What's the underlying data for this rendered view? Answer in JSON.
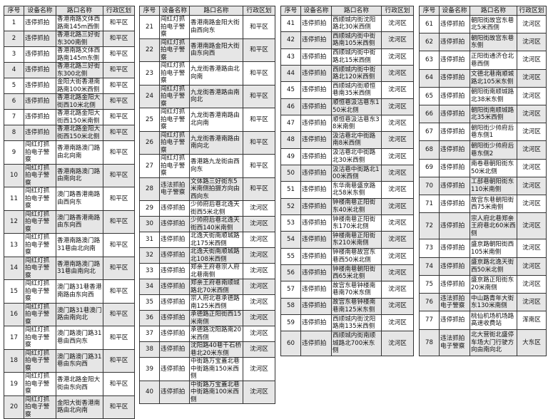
{
  "headers": [
    "序号",
    "设备名称",
    "路口名称",
    "行政区划"
  ],
  "rows": [
    [
      "1",
      "违停抓拍",
      "香港南路文体西路南145m西侧",
      "和平区"
    ],
    [
      "2",
      "违停抓拍",
      "香港北路三好街东300南侧",
      "和平区"
    ],
    [
      "3",
      "违停抓拍",
      "香港南路文体西路南145m东侧",
      "和平区"
    ],
    [
      "4",
      "违停抓拍",
      "香港北路三好街东300北侧",
      "和平区"
    ],
    [
      "5",
      "违停抓拍",
      "金阳大街香港南路南100米西侧",
      "和平区"
    ],
    [
      "6",
      "违停抓拍",
      "香港北路金阳大街西10米北侧",
      "和平区"
    ],
    [
      "7",
      "违停抓拍",
      "香港北路金阳大街西150米南侧",
      "和平区"
    ],
    [
      "8",
      "违停抓拍",
      "香港北路金阳大街西150米北侧",
      "和平区"
    ],
    [
      "9",
      "闯红灯抓拍电子警察",
      "香港南路澳门路由北向南",
      "和平区"
    ],
    [
      "10",
      "闯红灯抓拍电子警察",
      "香港南路澳门路由南向北",
      "和平区"
    ],
    [
      "11",
      "闯红灯抓拍电子警察",
      "澳门路香港南路由西向东",
      "和平区"
    ],
    [
      "12",
      "闯红灯抓拍电子警察",
      "澳门路香港南路由东向西",
      "和平区"
    ],
    [
      "13",
      "闯红灯抓拍电子警察",
      "香港南路澳门路31巷由北向南",
      "和平区"
    ],
    [
      "14",
      "闯红灯抓拍电子警察",
      "香港南路澳门路31巷由南向北",
      "和平区"
    ],
    [
      "15",
      "闯红灯抓拍电子警察",
      "澳门路31巷香港南路由东向西",
      "和平区"
    ],
    [
      "16",
      "闯红灯抓拍电子警察",
      "澳门路31巷澳门路由南向北",
      "和平区"
    ],
    [
      "17",
      "闯红灯抓拍电子警察",
      "澳门路澳门路31巷由西向东",
      "和平区"
    ],
    [
      "18",
      "闯红灯抓拍电子警察",
      "澳门路澳门路31巷由东向西",
      "和平区"
    ],
    [
      "19",
      "闯红灯抓拍电子警察",
      "香港北路金阳大街由东向西",
      "和平区"
    ],
    [
      "20",
      "闯红灯抓拍电子警察",
      "金阳大街香港南路由北向南",
      "和平区"
    ],
    [
      "21",
      "闯红灯抓拍电子警察",
      "香港南路金阳大街由西向东",
      "和平区"
    ],
    [
      "22",
      "闯红灯抓拍电子警察",
      "香港南路金阳大街由东向西",
      "和平区"
    ],
    [
      "23",
      "闯红灯抓拍电子警察",
      "九龙街香港路由北向南",
      "和平区"
    ],
    [
      "24",
      "闯红灯抓拍电子警察",
      "九龙街香港路由南向北",
      "和平区"
    ],
    [
      "25",
      "闯红灯抓拍电子警察",
      "九龙街香港南路由北向南",
      "和平区"
    ],
    [
      "26",
      "闯红灯抓拍电子警察",
      "九龙街香港南路由南向北",
      "和平区"
    ],
    [
      "27",
      "闯红灯抓拍电子警察",
      "香港路九龙街由西向东",
      "和平区"
    ],
    [
      "28",
      "违法抓拍电子警察",
      "文体路三好街东5米南侧拍摄方向由西向东",
      "和平区"
    ],
    [
      "29",
      "违停抓拍",
      "少帅府后巷北逸天街西5米北侧",
      "沈河区"
    ],
    [
      "30",
      "违停抓拍",
      "少帅府后巷北逸天街西140米南侧",
      "沈河区"
    ],
    [
      "31",
      "违停抓拍",
      "北逸天街南顺城路北175米西侧",
      "沈河区"
    ],
    [
      "32",
      "违停抓拍",
      "北逸天街南顺城路北108米西侧",
      "沈河区"
    ],
    [
      "33",
      "违停抓拍",
      "郑亲王府巷宗人府北巷南侧",
      "沈河区"
    ],
    [
      "34",
      "违停抓拍",
      "郑亲王府巷南顺城路北70米西侧",
      "沈河区"
    ],
    [
      "35",
      "违停抓拍",
      "宗人府北巷承德路南125米西侧",
      "沈河区"
    ],
    [
      "36",
      "违停抓拍",
      "承德路正阳街西15米南侧",
      "沈河区"
    ],
    [
      "37",
      "违停抓拍",
      "承德路沈阳路南20米西侧",
      "沈河区"
    ],
    [
      "38",
      "违停抓拍",
      "沈阳路40巷千石桥巷北20米东侧",
      "沈河区"
    ],
    [
      "39",
      "违停抓拍",
      "中街路万宝蓋北巷中街路南150米西侧",
      "沈河区"
    ],
    [
      "40",
      "违停抓拍",
      "中街路万宝蓋北巷中街路南100米西侧",
      "沈河区"
    ],
    [
      "41",
      "违停抓拍",
      "西顺城内街沈阳路北30米西侧",
      "沈河区"
    ],
    [
      "42",
      "违停抓拍",
      "西顺城内街中街路南105米西侧",
      "沈河区"
    ],
    [
      "43",
      "违停抓拍",
      "西顺城内街中街路北15米西侧",
      "沈河区"
    ],
    [
      "44",
      "违停抓拍",
      "西顺城内街中街路北120米西侧",
      "沈河区"
    ],
    [
      "45",
      "违停抓拍",
      "西顺城内街顺恒巷南35米西侧",
      "沈河区"
    ],
    [
      "46",
      "违停抓拍",
      "顺恒巷汲沽巷东150米北侧",
      "沈河区"
    ],
    [
      "47",
      "违停抓拍",
      "顺恒巷汲沽巷东38米南侧",
      "沈河区"
    ],
    [
      "48",
      "违停抓拍",
      "汲沽巷北中街路南8米西侧",
      "沈河区"
    ],
    [
      "49",
      "违停抓拍",
      "汲沽巷北中街路北30米西侧",
      "沈河区"
    ],
    [
      "50",
      "违停抓拍",
      "汲沽巷中街路北100米西侧",
      "沈河区"
    ],
    [
      "51",
      "违停抓拍",
      "东华南巷盛京路北58米东侧",
      "沈河区"
    ],
    [
      "52",
      "违停抓拍",
      "钟楼南巷正阳街东40米北侧",
      "沈河区"
    ],
    [
      "53",
      "违停抓拍",
      "钟楼南巷正阳街东170米北侧",
      "沈河区"
    ],
    [
      "54",
      "违停抓拍",
      "钟楼南巷正阳街东210米南侧",
      "沈河区"
    ],
    [
      "55",
      "违停抓拍",
      "钟楼南巷故宫东巷西50米北侧",
      "沈河区"
    ],
    [
      "56",
      "违停抓拍",
      "钟楼南巷朝阳街西65米北侧",
      "沈河区"
    ],
    [
      "57",
      "违停抓拍",
      "故宫东巷钟楼南巷南70米东侧",
      "沈河区"
    ],
    [
      "58",
      "违停抓拍",
      "故宫东巷钟楼南巷南125米东侧",
      "沈河区"
    ],
    [
      "59",
      "违停抓拍",
      "西顺城内街沈阳路南135米西侧",
      "沈河区"
    ],
    [
      "60",
      "违停抓拍",
      "西顺城内街南顺城路北700米东侧",
      "沈河区"
    ],
    [
      "61",
      "违停抓拍",
      "朝阳街故宫东巷北5米西侧",
      "沈河区"
    ],
    [
      "62",
      "违停抓拍",
      "朝阳街故宫东巷东侧",
      "沈河区"
    ],
    [
      "63",
      "违停抓拍",
      "正阳街通济仓北巷西侧",
      "沈河区"
    ],
    [
      "64",
      "违停抓拍",
      "文德北巷南顺城路北105米东侧",
      "沈河区"
    ],
    [
      "65",
      "违停抓拍",
      "朝阳街南顺城路北38米东侧",
      "沈河区"
    ],
    [
      "66",
      "违停抓拍",
      "朝阳街南顺城路北35米西侧",
      "沈河区"
    ],
    [
      "67",
      "违停抓拍",
      "朝阳街少帅府后巷东侧1",
      "沈河区"
    ],
    [
      "68",
      "违停抓拍",
      "朝阳街少帅府后巷东侧2",
      "沈河区"
    ],
    [
      "69",
      "违停抓拍",
      "南卷巷朝阳街东50米北侧",
      "沈河区"
    ],
    [
      "70",
      "违停抓拍",
      "工部巷朝阳街东110米南侧",
      "沈河区"
    ],
    [
      "71",
      "违停抓拍",
      "故宫东巷朝阳街西75米南侧",
      "沈河区"
    ],
    [
      "72",
      "违停抓拍",
      "宗人府北巷郑亲王府巷北60米西侧",
      "沈河区"
    ],
    [
      "73",
      "违停抓拍",
      "盛京路朝阳街西105米南侧",
      "沈河区"
    ],
    [
      "74",
      "违停抓拍",
      "盛京路北逸天街西50米北侧",
      "沈河区"
    ],
    [
      "75",
      "违停抓拍",
      "盛京路正阳街东20米南侧",
      "沈河区"
    ],
    [
      "76",
      "违法抓拍电子警察",
      "中山路青年大街东130米南侧",
      "沈河区"
    ],
    [
      "77",
      "违停抓拍",
      "桃仙机场机场路高速收费站",
      "浑南区"
    ],
    [
      "78",
      "违法抓拍电子警察",
      "北大营街北盛停车场大门行驶方向由南向北",
      "大东区"
    ]
  ]
}
